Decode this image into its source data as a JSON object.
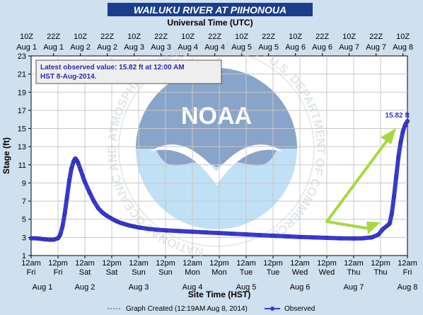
{
  "chart_data": {
    "type": "line",
    "title": "WAILUKU RIVER AT PIIHONOUA",
    "top_axis_title": "Universal Time (UTC)",
    "ylabel": "Stage (ft)",
    "xlabel": "Site Time (HST)",
    "ylim": [
      1,
      23
    ],
    "yticks": [
      1,
      3,
      5,
      7,
      9,
      11,
      13,
      15,
      17,
      19,
      21,
      23
    ],
    "xlim": [
      0,
      168
    ],
    "x_units": "hours since Aug 1 12am HST",
    "bottom_ticks": [
      {
        "h": 0,
        "time": "12am",
        "day": "Fri",
        "date": "Aug 1"
      },
      {
        "h": 12,
        "time": "12pm",
        "day": "Fri",
        "date": "Aug 1"
      },
      {
        "h": 24,
        "time": "12am",
        "day": "Sat",
        "date": "Aug 2"
      },
      {
        "h": 36,
        "time": "12pm",
        "day": "Sat",
        "date": "Aug 2"
      },
      {
        "h": 48,
        "time": "12am",
        "day": "Sun",
        "date": "Aug 3"
      },
      {
        "h": 60,
        "time": "12pm",
        "day": "Sun",
        "date": "Aug 3"
      },
      {
        "h": 72,
        "time": "12am",
        "day": "Mon",
        "date": "Aug 4"
      },
      {
        "h": 84,
        "time": "12pm",
        "day": "Mon",
        "date": "Aug 4"
      },
      {
        "h": 96,
        "time": "12am",
        "day": "Tue",
        "date": "Aug 5"
      },
      {
        "h": 108,
        "time": "12pm",
        "day": "Tue",
        "date": "Aug 5"
      },
      {
        "h": 120,
        "time": "12am",
        "day": "Wed",
        "date": "Aug 6"
      },
      {
        "h": 132,
        "time": "12pm",
        "day": "Wed",
        "date": "Aug 6"
      },
      {
        "h": 144,
        "time": "12am",
        "day": "Thu",
        "date": "Aug 7"
      },
      {
        "h": 156,
        "time": "12pm",
        "day": "Thu",
        "date": "Aug 7"
      },
      {
        "h": 168,
        "time": "12am",
        "day": "Fri",
        "date": "Aug 8"
      }
    ],
    "top_ticks": [
      {
        "h": -2,
        "time": "10Z",
        "date": "Aug 1"
      },
      {
        "h": 10,
        "time": "22Z",
        "date": "Aug 1"
      },
      {
        "h": 22,
        "time": "10Z",
        "date": "Aug 2"
      },
      {
        "h": 34,
        "time": "22Z",
        "date": "Aug 2"
      },
      {
        "h": 46,
        "time": "10Z",
        "date": "Aug 3"
      },
      {
        "h": 58,
        "time": "22Z",
        "date": "Aug 3"
      },
      {
        "h": 70,
        "time": "10Z",
        "date": "Aug 4"
      },
      {
        "h": 82,
        "time": "22Z",
        "date": "Aug 4"
      },
      {
        "h": 94,
        "time": "10Z",
        "date": "Aug 5"
      },
      {
        "h": 106,
        "time": "22Z",
        "date": "Aug 5"
      },
      {
        "h": 118,
        "time": "10Z",
        "date": "Aug 6"
      },
      {
        "h": 130,
        "time": "22Z",
        "date": "Aug 6"
      },
      {
        "h": 142,
        "time": "10Z",
        "date": "Aug 7"
      },
      {
        "h": 154,
        "time": "22Z",
        "date": "Aug 7"
      },
      {
        "h": 166,
        "time": "10Z",
        "date": "Aug 8"
      }
    ],
    "series": [
      {
        "name": "Observed",
        "color": "#3a3ad0",
        "points": [
          [
            0,
            2.9
          ],
          [
            2,
            2.9
          ],
          [
            4,
            2.85
          ],
          [
            6,
            2.8
          ],
          [
            8,
            2.75
          ],
          [
            10,
            2.75
          ],
          [
            12,
            2.9
          ],
          [
            13,
            3.3
          ],
          [
            14,
            4.2
          ],
          [
            15,
            5.6
          ],
          [
            16,
            7.4
          ],
          [
            17,
            9.2
          ],
          [
            18,
            10.6
          ],
          [
            19,
            11.4
          ],
          [
            19.7,
            11.7
          ],
          [
            20.4,
            11.5
          ],
          [
            21,
            11.2
          ],
          [
            22,
            10.5
          ],
          [
            23,
            9.8
          ],
          [
            24,
            9.1
          ],
          [
            26,
            8.0
          ],
          [
            28,
            7.0
          ],
          [
            30,
            6.2
          ],
          [
            32,
            5.7
          ],
          [
            34,
            5.35
          ],
          [
            36,
            5.05
          ],
          [
            38,
            4.8
          ],
          [
            40,
            4.6
          ],
          [
            42,
            4.45
          ],
          [
            44,
            4.3
          ],
          [
            46,
            4.2
          ],
          [
            48,
            4.1
          ],
          [
            52,
            3.95
          ],
          [
            56,
            3.85
          ],
          [
            60,
            3.78
          ],
          [
            66,
            3.7
          ],
          [
            72,
            3.62
          ],
          [
            78,
            3.55
          ],
          [
            84,
            3.48
          ],
          [
            90,
            3.4
          ],
          [
            96,
            3.33
          ],
          [
            102,
            3.25
          ],
          [
            108,
            3.18
          ],
          [
            114,
            3.12
          ],
          [
            120,
            3.05
          ],
          [
            126,
            3.0
          ],
          [
            132,
            2.95
          ],
          [
            138,
            2.9
          ],
          [
            144,
            2.88
          ],
          [
            148,
            2.9
          ],
          [
            152,
            3.0
          ],
          [
            155,
            3.3
          ],
          [
            157,
            3.9
          ],
          [
            159,
            4.3
          ],
          [
            160,
            4.5
          ],
          [
            161,
            5.6
          ],
          [
            162,
            7.5
          ],
          [
            163,
            9.7
          ],
          [
            164,
            11.9
          ],
          [
            165,
            13.5
          ],
          [
            166,
            14.7
          ],
          [
            167,
            15.4
          ],
          [
            168,
            15.82
          ]
        ]
      }
    ],
    "info_box": [
      "Latest observed value: 15.82 ft at 12:00 AM",
      "HST 8-Aug-2014."
    ],
    "last_value_label": "15.82 ft",
    "legend": {
      "graph_created": "Graph Created (12:19AM Aug 8, 2014)",
      "observed": "Observed"
    },
    "watermark": {
      "logo_text": "NOAA",
      "ring_text": "NATIONAL OCEANIC AND ATMOSPHERIC ADMINISTRATION · U.S. DEPARTMENT OF COMMERCE"
    },
    "annotation_color": "#a8d840",
    "grid": true
  }
}
